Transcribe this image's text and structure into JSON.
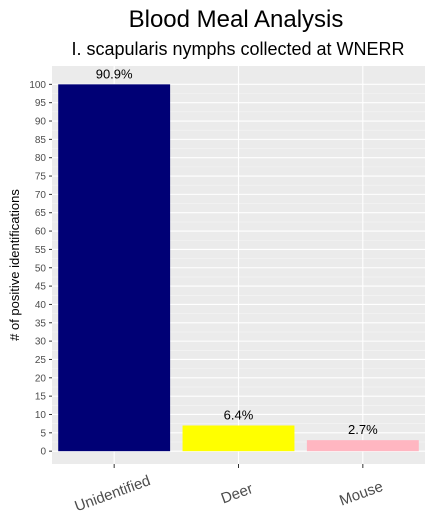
{
  "chart_data": {
    "type": "bar",
    "title": "Blood Meal Analysis",
    "subtitle": "I. scapularis nymphs collected at WNERR",
    "xlabel": "",
    "ylabel": "# of positive identifications",
    "categories": [
      "Unidentified",
      "Deer",
      "Mouse"
    ],
    "values": [
      100,
      7,
      3
    ],
    "data_labels": [
      "90.9%",
      "6.4%",
      "2.7%"
    ],
    "colors": [
      "#000075",
      "#ffff00",
      "#ffb6c1"
    ],
    "ylim": [
      -3.5,
      105
    ],
    "yticks": [
      0,
      5,
      10,
      15,
      20,
      25,
      30,
      35,
      40,
      45,
      50,
      55,
      60,
      65,
      70,
      75,
      80,
      85,
      90,
      95,
      100
    ],
    "grid": true,
    "panel_background": "#ebebeb",
    "legend": "none"
  }
}
